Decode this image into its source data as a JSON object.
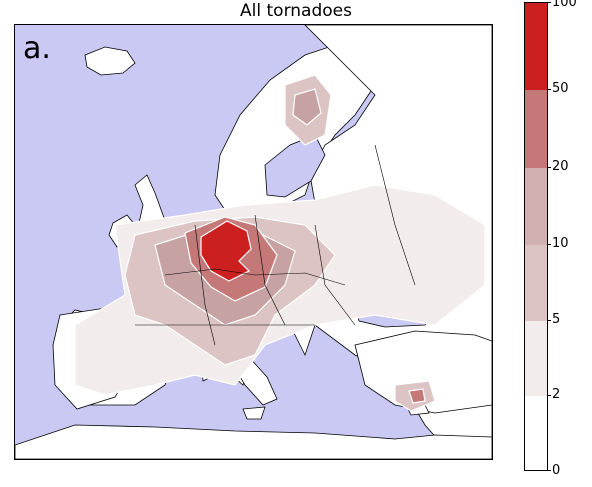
{
  "title": "All tornadoes",
  "panel_label": "a.",
  "colors": {
    "sea": "#c9c9f4",
    "land": "#ffffff",
    "coast": "#000000",
    "bins": [
      "#ffffff",
      "#f2ecec",
      "#dcc4c4",
      "#c7a2a2",
      "#c47878",
      "#cc2020"
    ]
  },
  "colorbar": {
    "ticks": [
      "0",
      "2",
      "5",
      "10",
      "20",
      "50",
      "100"
    ]
  },
  "map": {
    "region": "Europe",
    "hotspot": "central Europe (Germany)"
  }
}
